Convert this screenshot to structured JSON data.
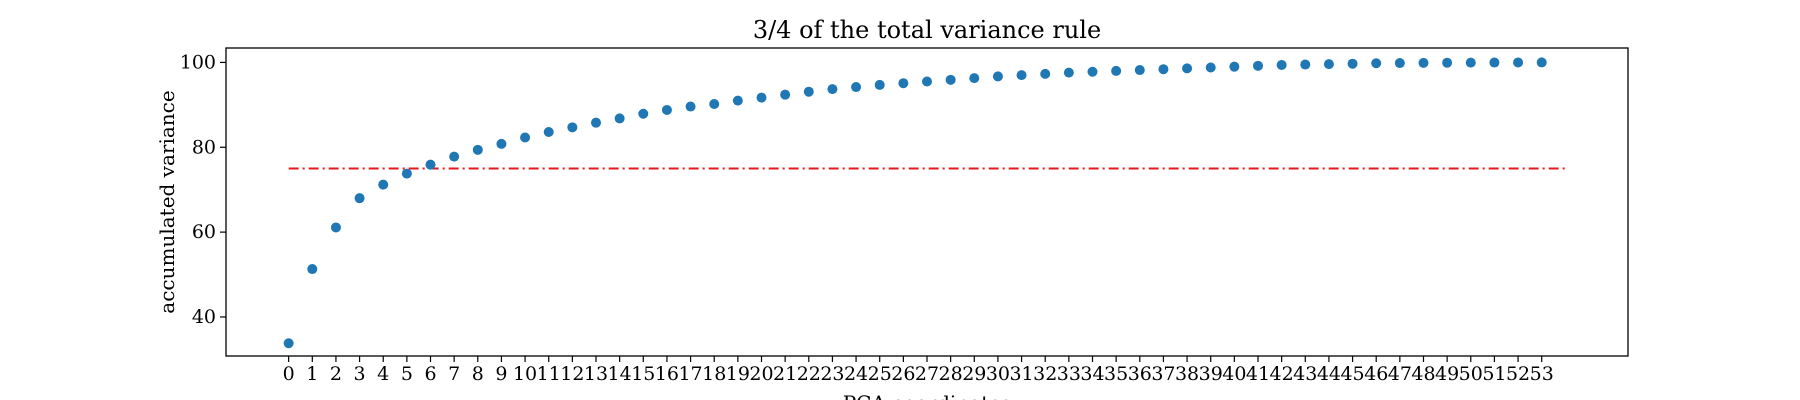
{
  "chart_data": {
    "type": "scatter",
    "title": "3/4 of the total variance rule",
    "xlabel": "PCA coordinates",
    "ylabel": "accumulated variance",
    "x": [
      0,
      1,
      2,
      3,
      4,
      5,
      6,
      7,
      8,
      9,
      10,
      11,
      12,
      13,
      14,
      15,
      16,
      17,
      18,
      19,
      20,
      21,
      22,
      23,
      24,
      25,
      26,
      27,
      28,
      29,
      30,
      31,
      32,
      33,
      34,
      35,
      36,
      37,
      38,
      39,
      40,
      41,
      42,
      43,
      44,
      45,
      46,
      47,
      48,
      49,
      50,
      51,
      52,
      53
    ],
    "x_ticks": [
      "0",
      "1",
      "2",
      "3",
      "4",
      "5",
      "6",
      "7",
      "8",
      "9",
      "10",
      "11",
      "12",
      "13",
      "14",
      "15",
      "16",
      "17",
      "18",
      "19",
      "20",
      "21",
      "22",
      "23",
      "24",
      "25",
      "26",
      "27",
      "28",
      "29",
      "30",
      "31",
      "32",
      "33",
      "34",
      "35",
      "36",
      "37",
      "38",
      "39",
      "40",
      "41",
      "42",
      "43",
      "44",
      "45",
      "46",
      "47",
      "48",
      "49",
      "50",
      "51",
      "52",
      "53"
    ],
    "y_ticks": [
      40,
      60,
      80,
      100
    ],
    "ylim": [
      30.8,
      103.4
    ],
    "xlim": [
      -2.65,
      56.65
    ],
    "series": [
      {
        "color": "#1f77b4",
        "values": [
          33.8,
          51.3,
          61.1,
          68.0,
          71.2,
          73.8,
          75.9,
          77.8,
          79.4,
          80.8,
          82.3,
          83.6,
          84.7,
          85.8,
          86.8,
          87.9,
          88.8,
          89.6,
          90.2,
          91.0,
          91.7,
          92.4,
          93.1,
          93.7,
          94.2,
          94.7,
          95.1,
          95.5,
          95.9,
          96.3,
          96.7,
          97.0,
          97.3,
          97.6,
          97.8,
          98.0,
          98.2,
          98.4,
          98.6,
          98.8,
          99.0,
          99.2,
          99.4,
          99.5,
          99.6,
          99.7,
          99.8,
          99.85,
          99.9,
          99.93,
          99.95,
          99.97,
          99.99,
          100.0
        ]
      }
    ],
    "reference_line": {
      "y": 75,
      "x_start": 0,
      "x_end": 54,
      "color": "#e31a1c",
      "style": "dash-dot"
    },
    "grid": false,
    "legend": "none"
  }
}
